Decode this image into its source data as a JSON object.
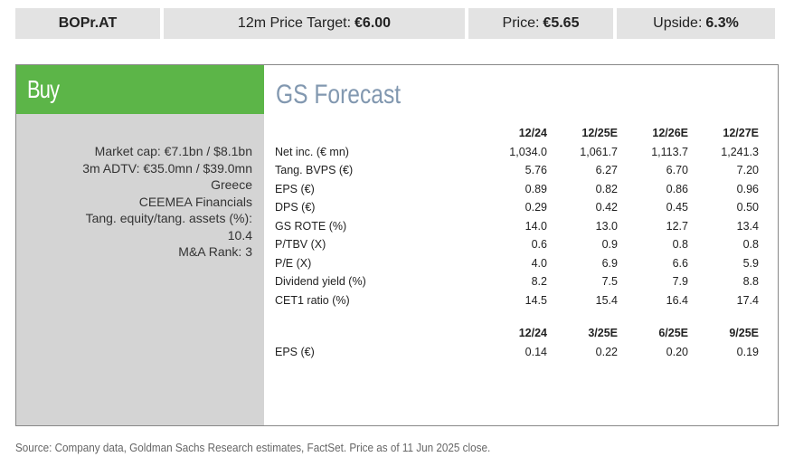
{
  "header": {
    "ticker": "BOPr.AT",
    "price_target_label": "12m Price Target:",
    "price_target_value": "€6.00",
    "price_label": "Price:",
    "price_value": "€5.65",
    "upside_label": "Upside:",
    "upside_value": "6.3%"
  },
  "rating": "Buy",
  "meta": [
    "Market cap: €7.1bn / $8.1bn",
    "3m ADTV: €35.0mn / $39.0mn",
    "Greece",
    "CEEMEA Financials",
    "Tang. equity/tang. assets (%):",
    "10.4",
    "M&A Rank: 3"
  ],
  "forecast": {
    "title": "GS Forecast",
    "annual_headers": [
      "12/24",
      "12/25E",
      "12/26E",
      "12/27E"
    ],
    "annual_rows": [
      {
        "label": "Net inc. (€ mn)",
        "values": [
          "1,034.0",
          "1,061.7",
          "1,113.7",
          "1,241.3"
        ]
      },
      {
        "label": "Tang. BVPS (€)",
        "values": [
          "5.76",
          "6.27",
          "6.70",
          "7.20"
        ]
      },
      {
        "label": "EPS (€)",
        "values": [
          "0.89",
          "0.82",
          "0.86",
          "0.96"
        ]
      },
      {
        "label": "DPS (€)",
        "values": [
          "0.29",
          "0.42",
          "0.45",
          "0.50"
        ]
      },
      {
        "label": "GS ROTE (%)",
        "values": [
          "14.0",
          "13.0",
          "12.7",
          "13.4"
        ]
      },
      {
        "label": "P/TBV (X)",
        "values": [
          "0.6",
          "0.9",
          "0.8",
          "0.8"
        ]
      },
      {
        "label": "P/E (X)",
        "values": [
          "4.0",
          "6.9",
          "6.6",
          "5.9"
        ]
      },
      {
        "label": "Dividend yield (%)",
        "values": [
          "8.2",
          "7.5",
          "7.9",
          "8.8"
        ]
      },
      {
        "label": "CET1 ratio (%)",
        "values": [
          "14.5",
          "15.4",
          "16.4",
          "17.4"
        ]
      }
    ],
    "quarterly_headers": [
      "12/24",
      "3/25E",
      "6/25E",
      "9/25E"
    ],
    "quarterly_rows": [
      {
        "label": "EPS (€)",
        "values": [
          "0.14",
          "0.22",
          "0.20",
          "0.19"
        ]
      }
    ]
  },
  "source": "Source: Company data, Goldman Sachs Research estimates, FactSet. Price as of 11 Jun 2025 close.",
  "colors": {
    "buy_green": "#5cb548",
    "title_blue": "#8298b0",
    "panel_gray": "#d4d4d4",
    "bar_gray": "#e3e3e3"
  }
}
